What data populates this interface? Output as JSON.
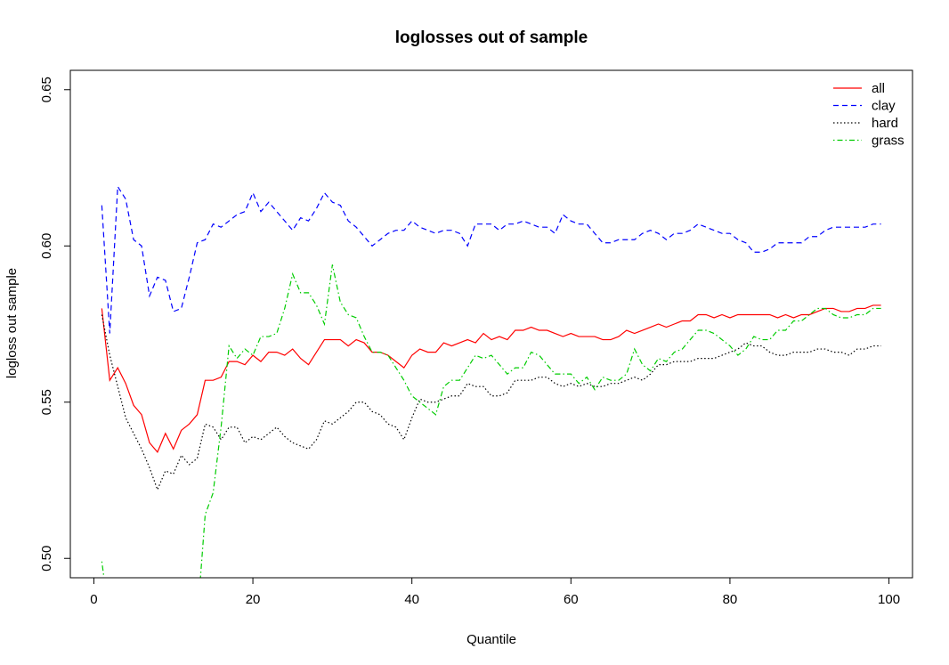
{
  "chart_data": {
    "type": "line",
    "title": "loglosses out of sample",
    "xlabel": "Quantile",
    "ylabel": "logloss out sample",
    "xlim": [
      -2.96,
      102.96
    ],
    "ylim": [
      0.4938,
      0.6562
    ],
    "x_ticks": [
      0,
      20,
      40,
      60,
      80,
      100
    ],
    "x_tick_labels": [
      "0",
      "20",
      "40",
      "60",
      "80",
      "100"
    ],
    "y_ticks": [
      0.5,
      0.55,
      0.6,
      0.65
    ],
    "y_tick_labels": [
      "0.50",
      "0.55",
      "0.60",
      "0.65"
    ],
    "legend_position": "top-right",
    "grid": false,
    "x": [
      1,
      2,
      3,
      4,
      5,
      6,
      7,
      8,
      9,
      10,
      11,
      12,
      13,
      14,
      15,
      16,
      17,
      18,
      19,
      20,
      21,
      22,
      23,
      24,
      25,
      26,
      27,
      28,
      29,
      30,
      31,
      32,
      33,
      34,
      35,
      36,
      37,
      38,
      39,
      40,
      41,
      42,
      43,
      44,
      45,
      46,
      47,
      48,
      49,
      50,
      51,
      52,
      53,
      54,
      55,
      56,
      57,
      58,
      59,
      60,
      61,
      62,
      63,
      64,
      65,
      66,
      67,
      68,
      69,
      70,
      71,
      72,
      73,
      74,
      75,
      76,
      77,
      78,
      79,
      80,
      81,
      82,
      83,
      84,
      85,
      86,
      87,
      88,
      89,
      90,
      91,
      92,
      93,
      94,
      95,
      96,
      97,
      98,
      99
    ],
    "series": [
      {
        "name": "all",
        "color": "#ff0000",
        "dash": "solid",
        "values": [
          0.58,
          0.557,
          0.561,
          0.556,
          0.549,
          0.546,
          0.537,
          0.534,
          0.54,
          0.535,
          0.541,
          0.543,
          0.546,
          0.557,
          0.557,
          0.558,
          0.563,
          0.563,
          0.562,
          0.565,
          0.563,
          0.566,
          0.566,
          0.565,
          0.567,
          0.564,
          0.562,
          0.566,
          0.57,
          0.57,
          0.57,
          0.568,
          0.57,
          0.569,
          0.566,
          0.566,
          0.565,
          0.563,
          0.561,
          0.565,
          0.567,
          0.566,
          0.566,
          0.569,
          0.568,
          0.569,
          0.57,
          0.569,
          0.572,
          0.57,
          0.571,
          0.57,
          0.573,
          0.573,
          0.574,
          0.573,
          0.573,
          0.572,
          0.571,
          0.572,
          0.571,
          0.571,
          0.571,
          0.57,
          0.57,
          0.571,
          0.573,
          0.572,
          0.573,
          0.574,
          0.575,
          0.574,
          0.575,
          0.576,
          0.576,
          0.578,
          0.578,
          0.577,
          0.578,
          0.577,
          0.578,
          0.578,
          0.578,
          0.578,
          0.578,
          0.577,
          0.578,
          0.577,
          0.578,
          0.578,
          0.579,
          0.58,
          0.58,
          0.579,
          0.579,
          0.58,
          0.58,
          0.581,
          0.581
        ]
      },
      {
        "name": "clay",
        "color": "#0000ff",
        "dash": "dashed",
        "values": [
          0.613,
          0.572,
          0.619,
          0.615,
          0.602,
          0.6,
          0.584,
          0.59,
          0.589,
          0.579,
          0.58,
          0.59,
          0.601,
          0.602,
          0.607,
          0.606,
          0.608,
          0.61,
          0.611,
          0.617,
          0.611,
          0.614,
          0.611,
          0.608,
          0.605,
          0.609,
          0.608,
          0.612,
          0.617,
          0.614,
          0.613,
          0.608,
          0.606,
          0.603,
          0.6,
          0.602,
          0.604,
          0.605,
          0.605,
          0.608,
          0.606,
          0.605,
          0.604,
          0.605,
          0.605,
          0.604,
          0.6,
          0.607,
          0.607,
          0.607,
          0.605,
          0.607,
          0.607,
          0.608,
          0.607,
          0.606,
          0.606,
          0.604,
          0.61,
          0.608,
          0.607,
          0.607,
          0.604,
          0.601,
          0.601,
          0.602,
          0.602,
          0.602,
          0.604,
          0.605,
          0.604,
          0.602,
          0.604,
          0.604,
          0.605,
          0.607,
          0.606,
          0.605,
          0.604,
          0.604,
          0.602,
          0.601,
          0.598,
          0.598,
          0.599,
          0.601,
          0.601,
          0.601,
          0.601,
          0.603,
          0.603,
          0.605,
          0.606,
          0.606,
          0.606,
          0.606,
          0.606,
          0.607,
          0.607
        ]
      },
      {
        "name": "hard",
        "color": "#000000",
        "dash": "dotted",
        "values": [
          0.578,
          0.565,
          0.555,
          0.545,
          0.54,
          0.535,
          0.529,
          0.522,
          0.528,
          0.527,
          0.533,
          0.53,
          0.532,
          0.543,
          0.542,
          0.538,
          0.542,
          0.542,
          0.537,
          0.539,
          0.538,
          0.54,
          0.542,
          0.539,
          0.537,
          0.536,
          0.535,
          0.538,
          0.544,
          0.543,
          0.545,
          0.547,
          0.55,
          0.55,
          0.547,
          0.546,
          0.543,
          0.542,
          0.538,
          0.545,
          0.551,
          0.55,
          0.55,
          0.551,
          0.552,
          0.552,
          0.556,
          0.555,
          0.555,
          0.552,
          0.552,
          0.553,
          0.557,
          0.557,
          0.557,
          0.558,
          0.558,
          0.556,
          0.555,
          0.556,
          0.555,
          0.556,
          0.555,
          0.555,
          0.556,
          0.556,
          0.557,
          0.558,
          0.557,
          0.559,
          0.562,
          0.562,
          0.563,
          0.563,
          0.563,
          0.564,
          0.564,
          0.564,
          0.565,
          0.566,
          0.567,
          0.569,
          0.568,
          0.568,
          0.566,
          0.565,
          0.565,
          0.566,
          0.566,
          0.566,
          0.567,
          0.567,
          0.566,
          0.566,
          0.565,
          0.567,
          0.567,
          0.568,
          0.568
        ]
      },
      {
        "name": "grass",
        "color": "#00cc00",
        "dash": "dotdash",
        "values": [
          0.499,
          0.48,
          null,
          null,
          null,
          null,
          null,
          null,
          null,
          null,
          null,
          null,
          0.48,
          0.514,
          0.521,
          0.542,
          0.568,
          0.564,
          0.567,
          0.565,
          0.571,
          0.571,
          0.572,
          0.58,
          0.591,
          0.585,
          0.585,
          0.581,
          0.575,
          0.594,
          0.582,
          0.578,
          0.577,
          0.571,
          0.566,
          0.566,
          0.565,
          0.561,
          0.557,
          0.552,
          0.55,
          0.548,
          0.546,
          0.555,
          0.557,
          0.557,
          0.561,
          0.565,
          0.564,
          0.565,
          0.562,
          0.559,
          0.561,
          0.561,
          0.566,
          0.565,
          0.562,
          0.559,
          0.559,
          0.559,
          0.556,
          0.558,
          0.554,
          0.558,
          0.557,
          0.557,
          0.559,
          0.567,
          0.562,
          0.56,
          0.564,
          0.563,
          0.566,
          0.567,
          0.57,
          0.573,
          0.573,
          0.572,
          0.57,
          0.568,
          0.565,
          0.567,
          0.571,
          0.57,
          0.57,
          0.573,
          0.573,
          0.576,
          0.576,
          0.578,
          0.58,
          0.58,
          0.578,
          0.577,
          0.577,
          0.578,
          0.578,
          0.58,
          0.58
        ]
      }
    ]
  }
}
